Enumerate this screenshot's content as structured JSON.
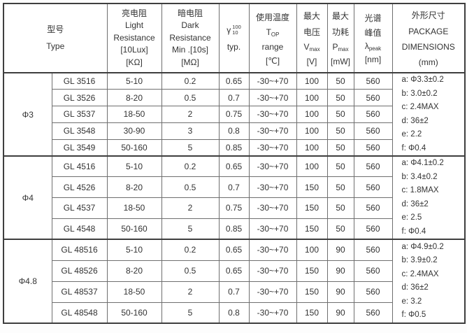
{
  "colors": {
    "border_thin": "#6f6f6f",
    "border_thick": "#3e3e3e",
    "text": "#333333",
    "background": "#fdfdfd"
  },
  "table": {
    "headers": {
      "type": {
        "zh": "型号",
        "en": "Type"
      },
      "light": {
        "zh": "亮电阻",
        "en1": "Light",
        "en2": "Resistance",
        "cond": "[10Lux]",
        "unit": "[KΩ]"
      },
      "dark": {
        "zh": "暗电阻",
        "en1": "Dark",
        "en2": "Resistance",
        "cond": "Min .[10s]",
        "unit": "[MΩ]"
      },
      "gamma": {
        "base": "γ",
        "sup": "100",
        "sub": "10",
        "typ": "typ."
      },
      "temp": {
        "zh": "使用温度",
        "base": "T",
        "sub": "OP",
        "range": "range",
        "unit": "[℃]"
      },
      "voltage": {
        "zh1": "最大",
        "zh2": "电压",
        "base": "V",
        "sub": "max",
        "unit": "[V]"
      },
      "power": {
        "zh1": "最大",
        "zh2": "功耗",
        "base": "P",
        "sub": "max",
        "unit": "[mW]"
      },
      "wavelength": {
        "zh1": "光谱",
        "zh2": "峰值",
        "base": "λ",
        "sub": "peak",
        "unit": "[nm]"
      },
      "package": {
        "zh": "外形尺寸",
        "en1": "PACKAGE",
        "en2": "DIMENSIONS",
        "unit": "(mm)"
      }
    },
    "groups": [
      {
        "size": "Φ3",
        "rows": [
          {
            "model": "GL 3516",
            "light": "5-10",
            "dark": "0.2",
            "gamma": "0.65",
            "temp": "-30~+70",
            "v": "100",
            "p": "50",
            "nm": "560"
          },
          {
            "model": "GL 3526",
            "light": "8-20",
            "dark": "0.5",
            "gamma": "0.7",
            "temp": "-30~+70",
            "v": "100",
            "p": "50",
            "nm": "560"
          },
          {
            "model": "GL 3537",
            "light": "18-50",
            "dark": "2",
            "gamma": "0.75",
            "temp": "-30~+70",
            "v": "100",
            "p": "50",
            "nm": "560"
          },
          {
            "model": "GL 3548",
            "light": "30-90",
            "dark": "3",
            "gamma": "0.8",
            "temp": "-30~+70",
            "v": "100",
            "p": "50",
            "nm": "560"
          },
          {
            "model": "GL 3549",
            "light": "50-160",
            "dark": "5",
            "gamma": "0.85",
            "temp": "-30~+70",
            "v": "100",
            "p": "50",
            "nm": "560"
          }
        ],
        "dims": [
          "a: Φ3.3±0.2",
          "b: 3.0±0.2",
          "c: 2.4MAX",
          "d: 36±2",
          "e: 2.2",
          "f: Φ0.4"
        ]
      },
      {
        "size": "Φ4",
        "rows": [
          {
            "model": "GL 4516",
            "light": "5-10",
            "dark": "0.2",
            "gamma": "0.65",
            "temp": "-30~+70",
            "v": "100",
            "p": "50",
            "nm": "560"
          },
          {
            "model": "GL 4526",
            "light": "8-20",
            "dark": "0.5",
            "gamma": "0.7",
            "temp": "-30~+70",
            "v": "150",
            "p": "50",
            "nm": "560"
          },
          {
            "model": "GL 4537",
            "light": "18-50",
            "dark": "2",
            "gamma": "0.75",
            "temp": "-30~+70",
            "v": "150",
            "p": "50",
            "nm": "560"
          },
          {
            "model": "GL 4548",
            "light": "50-160",
            "dark": "5",
            "gamma": "0.85",
            "temp": "-30~+70",
            "v": "150",
            "p": "50",
            "nm": "560"
          }
        ],
        "dims": [
          "a: Φ4.1±0.2",
          "b: 3.4±0.2",
          "c: 1.8MAX",
          "d: 36±2",
          "e: 2.5",
          "f: Φ0.4"
        ]
      },
      {
        "size": "Φ4.8",
        "rows": [
          {
            "model": "GL 48516",
            "light": "5-10",
            "dark": "0.2",
            "gamma": "0.65",
            "temp": "-30~+70",
            "v": "100",
            "p": "90",
            "nm": "560"
          },
          {
            "model": "GL 48526",
            "light": "8-20",
            "dark": "0.5",
            "gamma": "0.65",
            "temp": "-30~+70",
            "v": "150",
            "p": "90",
            "nm": "560"
          },
          {
            "model": "GL 48537",
            "light": "18-50",
            "dark": "2",
            "gamma": "0.7",
            "temp": "-30~+70",
            "v": "150",
            "p": "90",
            "nm": "560"
          },
          {
            "model": "GL 48548",
            "light": "50-160",
            "dark": "5",
            "gamma": "0.8",
            "temp": "-30~+70",
            "v": "150",
            "p": "90",
            "nm": "560"
          }
        ],
        "dims": [
          "a: Φ4.9±0.2",
          "b: 3.9±0.2",
          "c: 2.4MAX",
          "d: 36±2",
          "e: 3.2",
          "f: Φ0.5"
        ]
      }
    ]
  }
}
